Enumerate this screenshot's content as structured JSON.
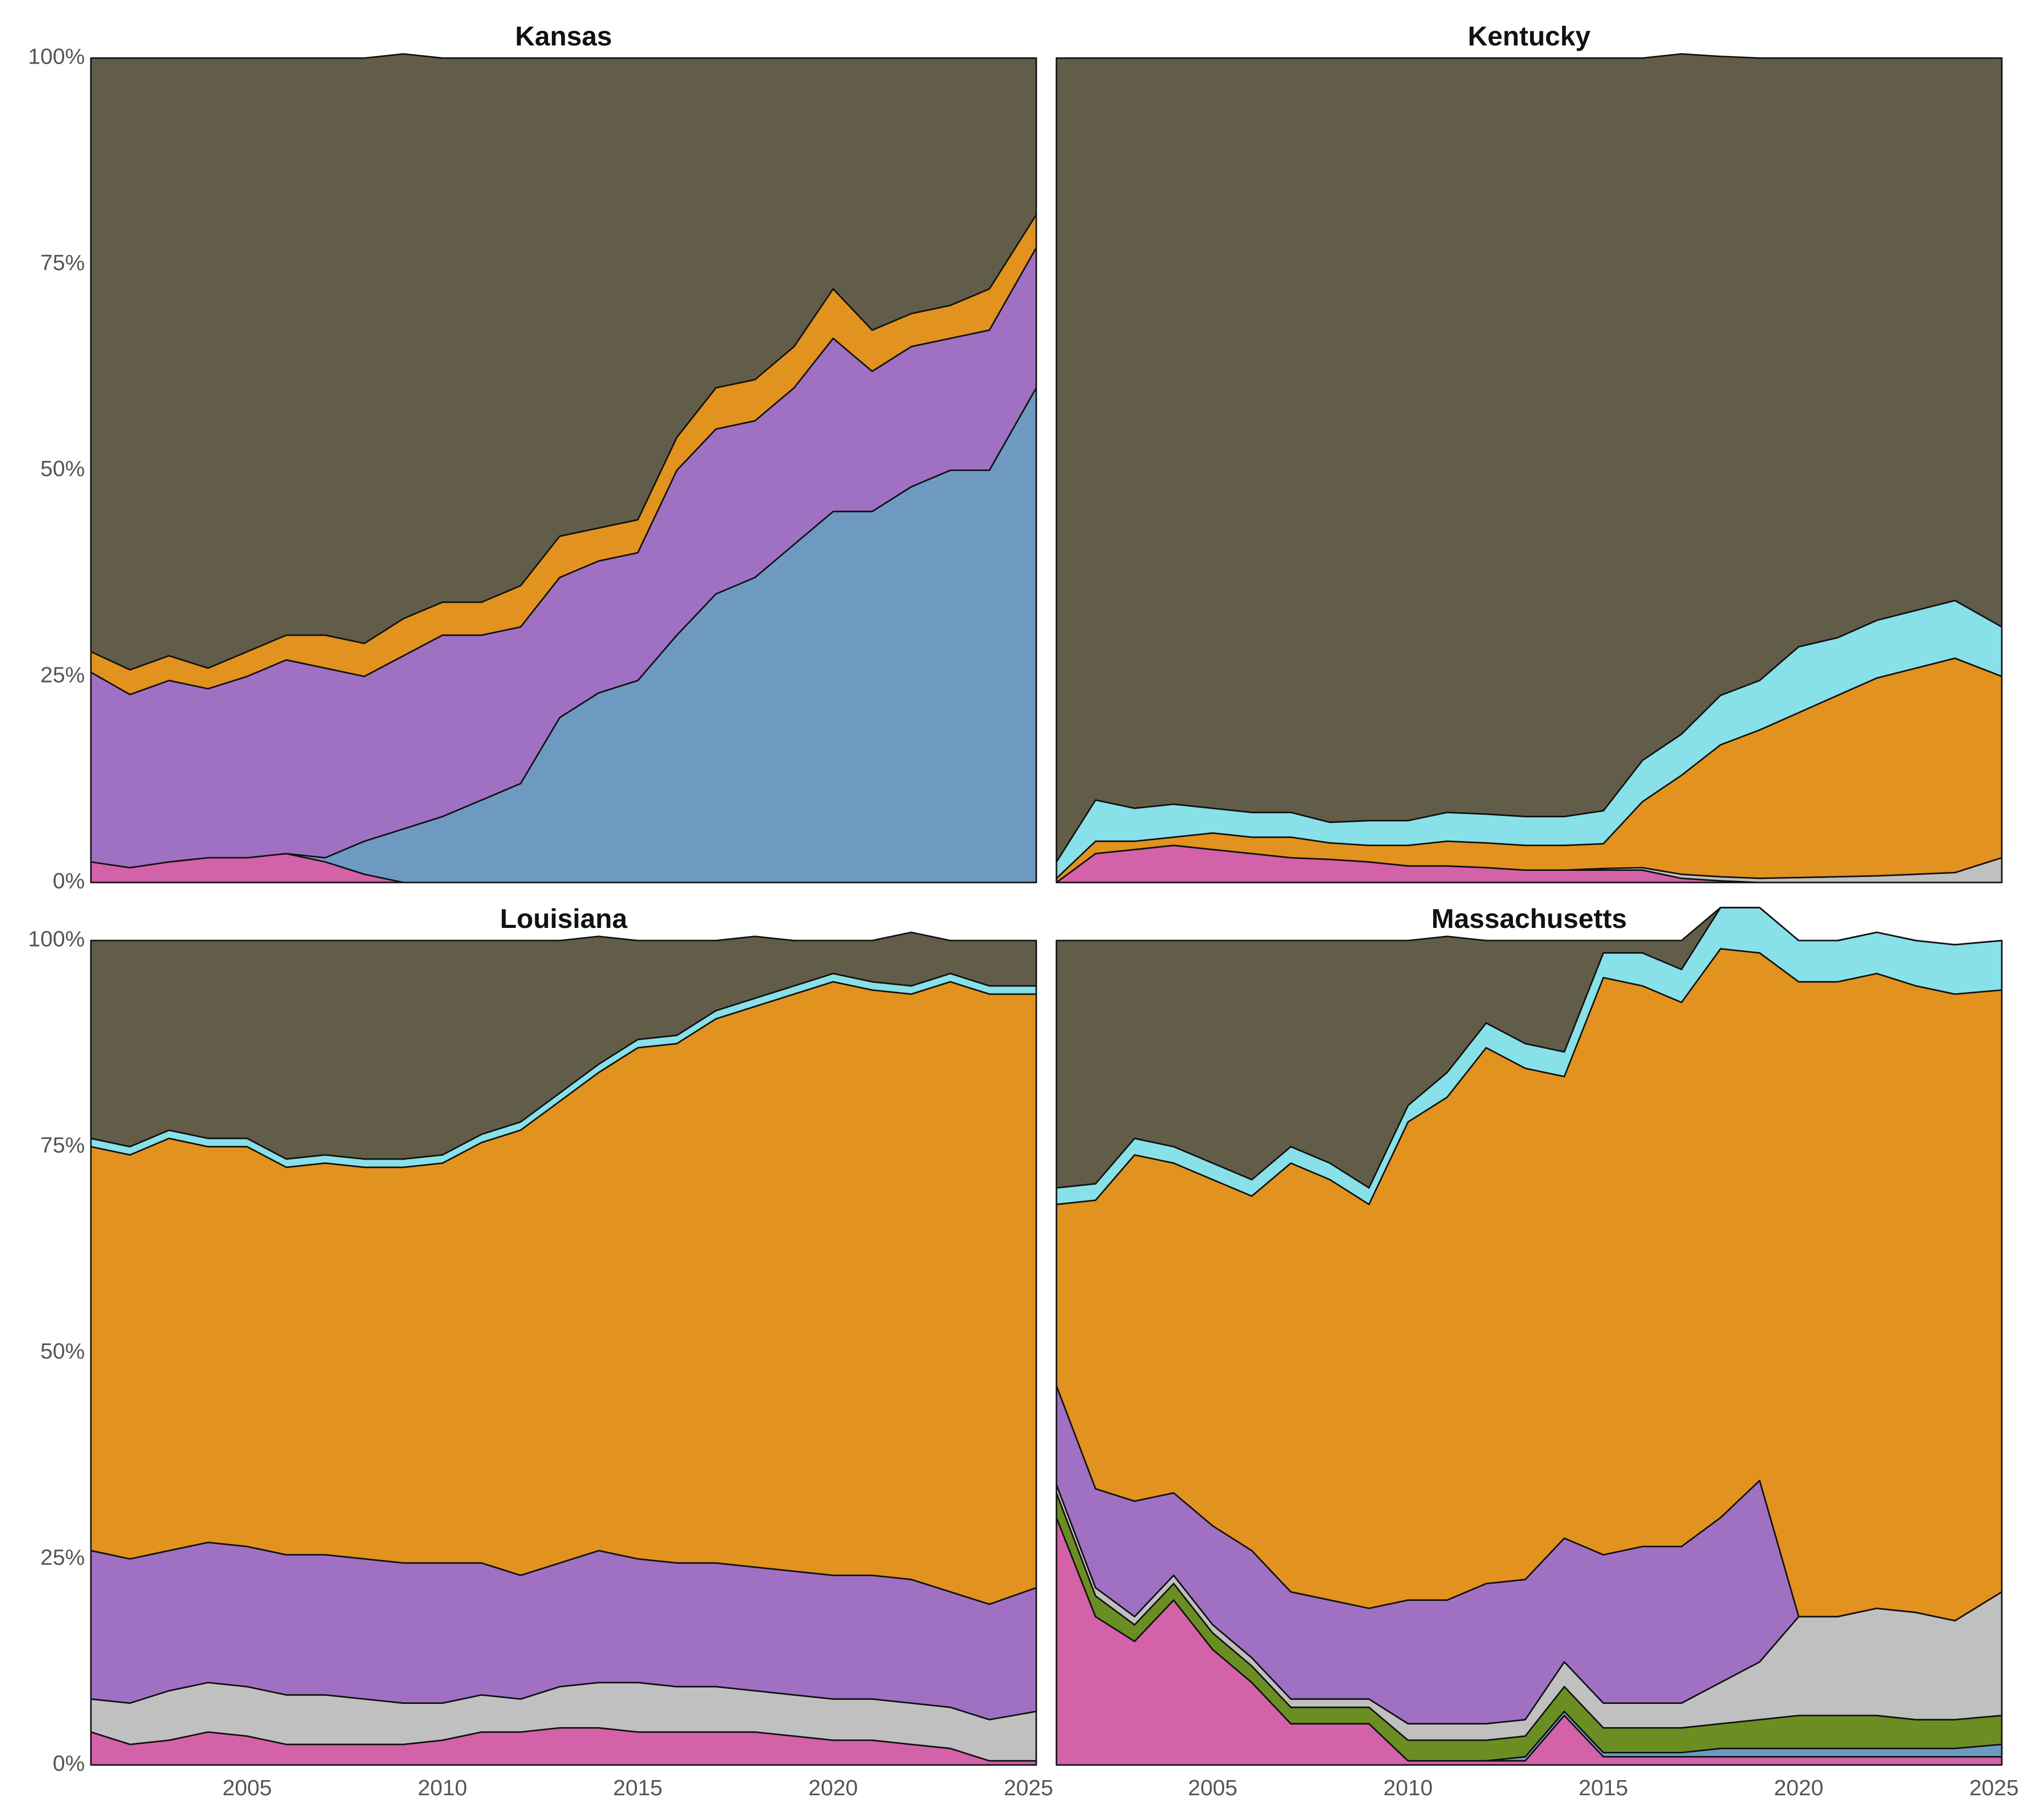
{
  "colors": {
    "background": "#ffffff",
    "outline": "#111111",
    "layer_palette": [
      "#d462a8",
      "#6e9ac2",
      "#6b8e23",
      "#c0c0c0",
      "#a070c2",
      "#e2921f",
      "#88e0e8",
      "#625d49"
    ]
  },
  "chart_data": [
    {
      "type": "area",
      "title": "Kansas",
      "xlim": [
        2001,
        2025.2
      ],
      "ylim": [
        0,
        1
      ],
      "x_ticks": [
        2005,
        2010,
        2015,
        2020,
        2025
      ],
      "x_tick_labels": [
        "",
        "",
        "",
        "",
        ""
      ],
      "y_ticks": [
        0,
        0.25,
        0.5,
        0.75,
        1
      ],
      "y_tick_labels": [
        "0%",
        "25%",
        "50%",
        "75%",
        "100%"
      ],
      "x": [
        2001,
        2002,
        2003,
        2004,
        2005,
        2006,
        2007,
        2008,
        2009,
        2010,
        2011,
        2012,
        2013,
        2014,
        2015,
        2016,
        2017,
        2018,
        2019,
        2020,
        2021,
        2022,
        2023,
        2024,
        2025.2
      ],
      "layers": [
        {
          "color": "#d462a8",
          "values": [
            0.025,
            0.018,
            0.025,
            0.03,
            0.03,
            0.035,
            0.025,
            0.01,
            0,
            0,
            0,
            0,
            0,
            0,
            0,
            0,
            0,
            0,
            0,
            0,
            0,
            0,
            0,
            0,
            0
          ]
        },
        {
          "color": "#6e9ac2",
          "values": [
            0,
            0,
            0,
            0,
            0,
            0,
            0.005,
            0.04,
            0.065,
            0.08,
            0.1,
            0.12,
            0.2,
            0.23,
            0.245,
            0.3,
            0.35,
            0.37,
            0.41,
            0.45,
            0.45,
            0.48,
            0.5,
            0.5,
            0.6
          ]
        },
        {
          "color": "#a070c2",
          "values": [
            0.23,
            0.21,
            0.22,
            0.205,
            0.22,
            0.235,
            0.23,
            0.2,
            0.21,
            0.22,
            0.2,
            0.19,
            0.17,
            0.16,
            0.155,
            0.2,
            0.2,
            0.19,
            0.19,
            0.21,
            0.17,
            0.17,
            0.16,
            0.17,
            0.17
          ]
        },
        {
          "color": "#e2921f",
          "values": [
            0.025,
            0.03,
            0.03,
            0.025,
            0.03,
            0.03,
            0.04,
            0.04,
            0.045,
            0.04,
            0.04,
            0.05,
            0.05,
            0.04,
            0.04,
            0.04,
            0.05,
            0.05,
            0.05,
            0.06,
            0.05,
            0.04,
            0.04,
            0.05,
            0.04
          ]
        },
        {
          "color": "#625d49",
          "values": [
            0.72,
            0.742,
            0.725,
            0.74,
            0.72,
            0.7,
            0.7,
            0.71,
            0.685,
            0.66,
            0.66,
            0.64,
            0.58,
            0.57,
            0.56,
            0.46,
            0.4,
            0.39,
            0.35,
            0.28,
            0.33,
            0.31,
            0.3,
            0.28,
            0.19
          ]
        }
      ]
    },
    {
      "type": "area",
      "title": "Kentucky",
      "xlim": [
        2001,
        2025.2
      ],
      "ylim": [
        0,
        1
      ],
      "x_ticks": [
        2005,
        2010,
        2015,
        2020,
        2025
      ],
      "x_tick_labels": [
        "",
        "",
        "",
        "",
        ""
      ],
      "y_ticks": [
        0,
        0.25,
        0.5,
        0.75,
        1
      ],
      "y_tick_labels": [
        "",
        "",
        "",
        "",
        ""
      ],
      "x": [
        2001,
        2002,
        2003,
        2004,
        2005,
        2006,
        2007,
        2008,
        2009,
        2010,
        2011,
        2012,
        2013,
        2014,
        2015,
        2016,
        2017,
        2018,
        2019,
        2020,
        2021,
        2022,
        2023,
        2024,
        2025.2
      ],
      "layers": [
        {
          "color": "#d462a8",
          "values": [
            0,
            0.035,
            0.04,
            0.045,
            0.04,
            0.035,
            0.03,
            0.028,
            0.025,
            0.02,
            0.02,
            0.018,
            0.015,
            0.015,
            0.015,
            0.015,
            0.005,
            0.002,
            0,
            0,
            0,
            0,
            0,
            0,
            0
          ]
        },
        {
          "color": "#c0c0c0",
          "values": [
            0,
            0,
            0,
            0,
            0,
            0,
            0,
            0,
            0,
            0,
            0,
            0,
            0,
            0,
            0.002,
            0.003,
            0.005,
            0.005,
            0.005,
            0.006,
            0.007,
            0.008,
            0.01,
            0.012,
            0.03
          ]
        },
        {
          "color": "#e2921f",
          "values": [
            0.005,
            0.015,
            0.01,
            0.01,
            0.02,
            0.02,
            0.025,
            0.02,
            0.02,
            0.025,
            0.03,
            0.03,
            0.03,
            0.03,
            0.03,
            0.08,
            0.12,
            0.16,
            0.18,
            0.2,
            0.22,
            0.24,
            0.25,
            0.26,
            0.22
          ]
        },
        {
          "color": "#88e0e8",
          "values": [
            0.02,
            0.05,
            0.04,
            0.04,
            0.03,
            0.03,
            0.03,
            0.025,
            0.03,
            0.03,
            0.035,
            0.035,
            0.035,
            0.035,
            0.04,
            0.05,
            0.05,
            0.06,
            0.06,
            0.08,
            0.07,
            0.07,
            0.07,
            0.07,
            0.06
          ]
        },
        {
          "color": "#625d49",
          "values": [
            0.975,
            0.9,
            0.91,
            0.905,
            0.91,
            0.915,
            0.915,
            0.927,
            0.925,
            0.925,
            0.915,
            0.917,
            0.92,
            0.92,
            0.913,
            0.852,
            0.825,
            0.775,
            0.755,
            0.714,
            0.703,
            0.682,
            0.67,
            0.658,
            0.69
          ]
        }
      ]
    },
    {
      "type": "area",
      "title": "Louisiana",
      "xlim": [
        2001,
        2025.2
      ],
      "ylim": [
        0,
        1
      ],
      "x_ticks": [
        2005,
        2010,
        2015,
        2020,
        2025
      ],
      "x_tick_labels": [
        "2005",
        "2010",
        "2015",
        "2020",
        "2025"
      ],
      "y_ticks": [
        0,
        0.25,
        0.5,
        0.75,
        1
      ],
      "y_tick_labels": [
        "0%",
        "25%",
        "50%",
        "75%",
        "100%"
      ],
      "x": [
        2001,
        2002,
        2003,
        2004,
        2005,
        2006,
        2007,
        2008,
        2009,
        2010,
        2011,
        2012,
        2013,
        2014,
        2015,
        2016,
        2017,
        2018,
        2019,
        2020,
        2021,
        2022,
        2023,
        2024,
        2025.2
      ],
      "layers": [
        {
          "color": "#d462a8",
          "values": [
            0.04,
            0.025,
            0.03,
            0.04,
            0.035,
            0.025,
            0.025,
            0.025,
            0.025,
            0.03,
            0.04,
            0.04,
            0.045,
            0.045,
            0.04,
            0.04,
            0.04,
            0.04,
            0.035,
            0.03,
            0.03,
            0.025,
            0.02,
            0.005,
            0.005
          ]
        },
        {
          "color": "#c0c0c0",
          "values": [
            0.04,
            0.05,
            0.06,
            0.06,
            0.06,
            0.06,
            0.06,
            0.055,
            0.05,
            0.045,
            0.045,
            0.04,
            0.05,
            0.055,
            0.06,
            0.055,
            0.055,
            0.05,
            0.05,
            0.05,
            0.05,
            0.05,
            0.05,
            0.05,
            0.06
          ]
        },
        {
          "color": "#a070c2",
          "values": [
            0.18,
            0.175,
            0.17,
            0.17,
            0.17,
            0.17,
            0.17,
            0.17,
            0.17,
            0.17,
            0.16,
            0.15,
            0.15,
            0.16,
            0.15,
            0.15,
            0.15,
            0.15,
            0.15,
            0.15,
            0.15,
            0.15,
            0.14,
            0.14,
            0.15
          ]
        },
        {
          "color": "#e2921f",
          "values": [
            0.49,
            0.49,
            0.5,
            0.48,
            0.485,
            0.47,
            0.475,
            0.475,
            0.48,
            0.485,
            0.51,
            0.54,
            0.56,
            0.58,
            0.62,
            0.63,
            0.66,
            0.68,
            0.7,
            0.72,
            0.71,
            0.71,
            0.74,
            0.74,
            0.72
          ]
        },
        {
          "color": "#88e0e8",
          "values": [
            0.01,
            0.01,
            0.01,
            0.01,
            0.01,
            0.01,
            0.01,
            0.01,
            0.01,
            0.01,
            0.01,
            0.01,
            0.01,
            0.01,
            0.01,
            0.01,
            0.01,
            0.01,
            0.01,
            0.01,
            0.01,
            0.01,
            0.01,
            0.01,
            0.01
          ]
        },
        {
          "color": "#625d49",
          "values": [
            0.24,
            0.25,
            0.23,
            0.24,
            0.24,
            0.265,
            0.26,
            0.265,
            0.265,
            0.26,
            0.235,
            0.22,
            0.185,
            0.155,
            0.12,
            0.115,
            0.085,
            0.075,
            0.055,
            0.04,
            0.05,
            0.065,
            0.04,
            0.055,
            0.055
          ]
        }
      ]
    },
    {
      "type": "area",
      "title": "Massachusetts",
      "xlim": [
        2001,
        2025.2
      ],
      "ylim": [
        0,
        1
      ],
      "x_ticks": [
        2005,
        2010,
        2015,
        2020,
        2025
      ],
      "x_tick_labels": [
        "2005",
        "2010",
        "2015",
        "2020",
        "2025"
      ],
      "y_ticks": [
        0,
        0.25,
        0.5,
        0.75,
        1
      ],
      "y_tick_labels": [
        "",
        "",
        "",
        "",
        ""
      ],
      "x": [
        2001,
        2002,
        2003,
        2004,
        2005,
        2006,
        2007,
        2008,
        2009,
        2010,
        2011,
        2012,
        2013,
        2014,
        2015,
        2016,
        2017,
        2018,
        2019,
        2020,
        2021,
        2022,
        2023,
        2024,
        2025.2
      ],
      "layers": [
        {
          "color": "#d462a8",
          "values": [
            0.3,
            0.18,
            0.15,
            0.2,
            0.14,
            0.1,
            0.05,
            0.05,
            0.05,
            0.005,
            0.005,
            0.005,
            0.005,
            0.06,
            0.01,
            0.01,
            0.01,
            0.01,
            0.01,
            0.01,
            0.01,
            0.01,
            0.01,
            0.01,
            0.01
          ]
        },
        {
          "color": "#6e9ac2",
          "values": [
            0,
            0,
            0,
            0,
            0,
            0,
            0,
            0,
            0,
            0,
            0,
            0,
            0.005,
            0.005,
            0.005,
            0.005,
            0.005,
            0.01,
            0.01,
            0.01,
            0.01,
            0.01,
            0.01,
            0.01,
            0.015
          ]
        },
        {
          "color": "#6b8e23",
          "values": [
            0.03,
            0.025,
            0.02,
            0.02,
            0.02,
            0.02,
            0.02,
            0.02,
            0.02,
            0.025,
            0.025,
            0.025,
            0.025,
            0.03,
            0.03,
            0.03,
            0.03,
            0.03,
            0.035,
            0.04,
            0.04,
            0.04,
            0.035,
            0.035,
            0.035
          ]
        },
        {
          "color": "#c0c0c0",
          "values": [
            0.01,
            0.01,
            0.01,
            0.01,
            0.01,
            0.01,
            0.01,
            0.01,
            0.01,
            0.02,
            0.02,
            0.02,
            0.02,
            0.03,
            0.03,
            0.03,
            0.03,
            0.05,
            0.07,
            0.12,
            0.12,
            0.13,
            0.13,
            0.12,
            0.15
          ]
        },
        {
          "color": "#a070c2",
          "values": [
            0.12,
            0.12,
            0.14,
            0.1,
            0.12,
            0.13,
            0.13,
            0.12,
            0.11,
            0.15,
            0.15,
            0.17,
            0.17,
            0.15,
            0.18,
            0.19,
            0.19,
            0.2,
            0.22,
            0,
            0,
            0,
            0,
            0,
            0
          ]
        },
        {
          "color": "#e2921f",
          "values": [
            0.22,
            0.35,
            0.42,
            0.4,
            0.42,
            0.43,
            0.52,
            0.51,
            0.49,
            0.58,
            0.61,
            0.65,
            0.62,
            0.56,
            0.7,
            0.68,
            0.66,
            0.69,
            0.64,
            0.77,
            0.77,
            0.77,
            0.76,
            0.76,
            0.73
          ]
        },
        {
          "color": "#88e0e8",
          "values": [
            0.02,
            0.02,
            0.02,
            0.02,
            0.02,
            0.02,
            0.02,
            0.02,
            0.02,
            0.02,
            0.03,
            0.03,
            0.03,
            0.03,
            0.03,
            0.04,
            0.04,
            0.05,
            0.055,
            0.05,
            0.05,
            0.05,
            0.055,
            0.06,
            0.06
          ]
        },
        {
          "color": "#625d49",
          "values": [
            0.3,
            0.295,
            0.24,
            0.25,
            0.27,
            0.29,
            0.25,
            0.27,
            0.3,
            0.2,
            0.165,
            0.1,
            0.125,
            0.135,
            0.015,
            0.015,
            0.035,
            0,
            0,
            0,
            0,
            0,
            0,
            0,
            0
          ]
        }
      ]
    }
  ]
}
